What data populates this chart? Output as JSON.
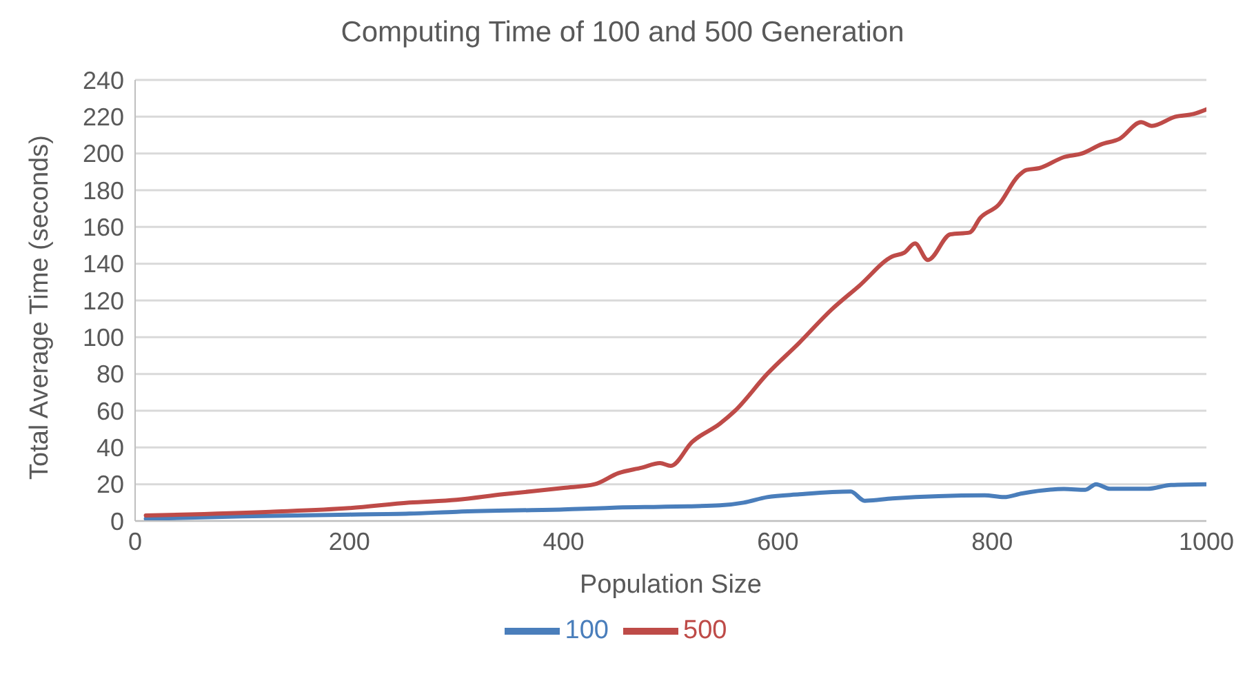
{
  "chart_data": {
    "type": "line",
    "title": "Computing Time of 100 and 500 Generation",
    "xlabel": "Population Size",
    "ylabel": "Total Average Time (seconds)",
    "xlim": [
      0,
      1000
    ],
    "xticks": [
      0,
      200,
      400,
      600,
      800,
      1000
    ],
    "ylim": [
      0,
      240
    ],
    "yticks": [
      0,
      20,
      40,
      60,
      80,
      100,
      120,
      140,
      160,
      180,
      200,
      220,
      240
    ],
    "grid": "y",
    "legend": "bottom",
    "marker": "none",
    "line_style": "solid",
    "series": [
      {
        "name": "100",
        "color": "#4a7ebb",
        "x": [
          10,
          100,
          200,
          256,
          300,
          400,
          430,
          450,
          490,
          516,
          546,
          568,
          590,
          620,
          668,
          681,
          707,
          793,
          811,
          828,
          867,
          887,
          897,
          910,
          945,
          967,
          1000
        ],
        "values": [
          1.2,
          2.5,
          3.5,
          4,
          5,
          6.3,
          6.8,
          7.3,
          7.7,
          8,
          8.5,
          10,
          13,
          14.5,
          16,
          11,
          12.3,
          14,
          13,
          15,
          17.4,
          17,
          20,
          17.5,
          17.5,
          19.6,
          20
        ]
      },
      {
        "name": "500",
        "color": "#be4b48",
        "x": [
          10,
          126,
          200,
          256,
          300,
          343,
          400,
          429,
          451,
          473,
          490,
          500,
          520,
          546,
          560,
          590,
          620,
          650,
          676,
          707,
          718,
          728,
          740,
          761,
          779,
          789,
          806,
          824,
          832,
          844,
          867,
          884,
          902,
          919,
          939,
          949,
          971,
          988,
          1000
        ],
        "values": [
          3,
          5,
          7,
          10,
          11.5,
          14.5,
          18,
          20,
          26,
          29,
          31.5,
          30,
          43,
          53,
          60,
          80,
          97,
          115,
          128,
          144,
          146,
          151,
          142,
          156,
          157,
          165,
          172,
          187.5,
          191,
          192,
          198,
          200,
          205,
          208,
          217,
          215,
          220,
          221.5,
          224
        ]
      }
    ]
  }
}
